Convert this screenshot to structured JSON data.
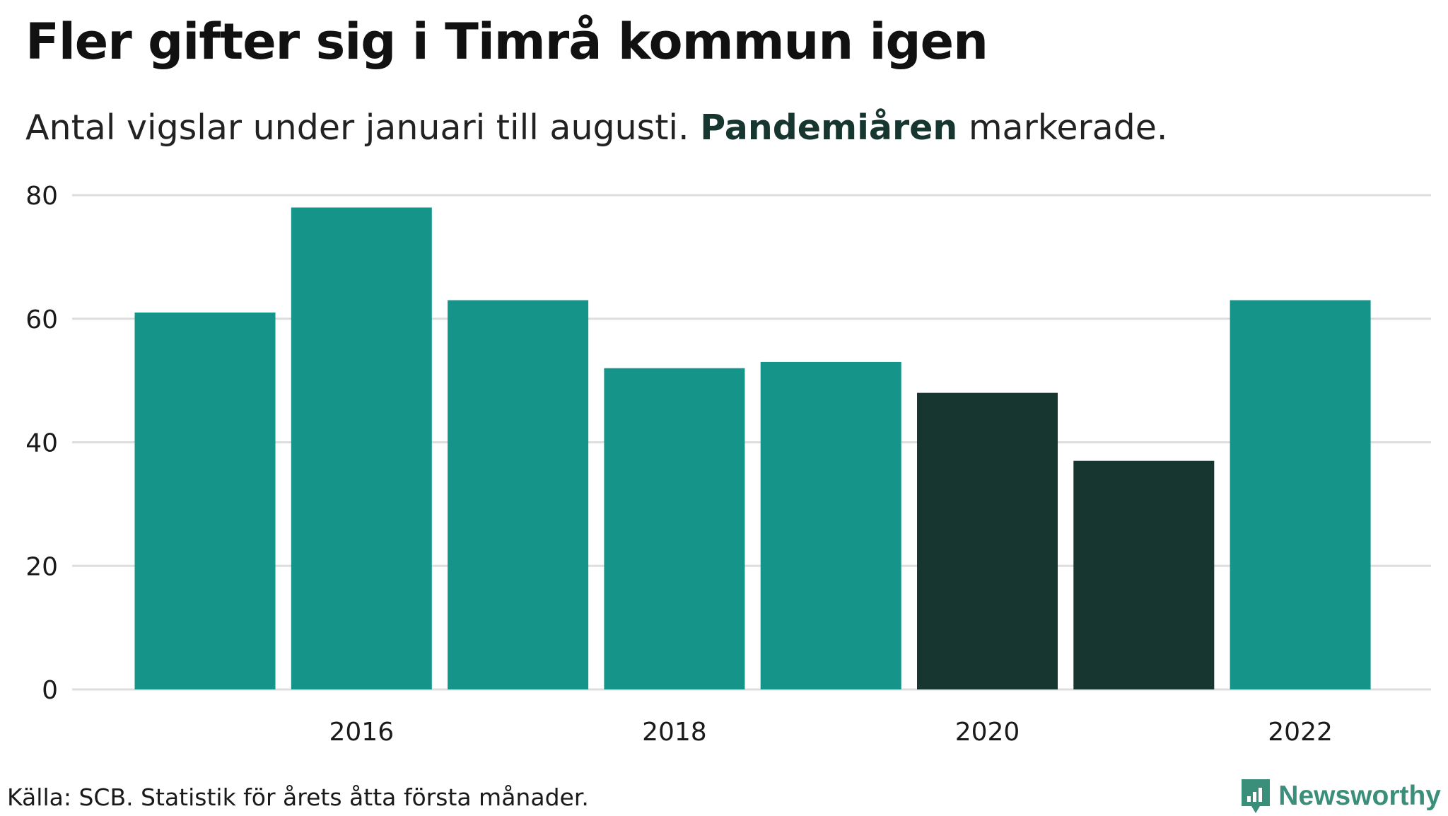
{
  "title": "Fler gifter sig i Timrå kommun igen",
  "subtitle": {
    "before": "Antal vigslar under januari till augusti.",
    "highlight": "Pandemiåren",
    "after": "markerade."
  },
  "source": "Källa: SCB. Statistik för årets åtta första månader.",
  "brand": "Newsworthy",
  "colors": {
    "normal": "#15958a",
    "pandemic": "#183630",
    "grid": "#dddddd",
    "brand": "#3a8f7a"
  },
  "chart_data": {
    "type": "bar",
    "categories": [
      "2015",
      "2016",
      "2017",
      "2018",
      "2019",
      "2020",
      "2021",
      "2022"
    ],
    "values": [
      61,
      78,
      63,
      52,
      53,
      48,
      37,
      63
    ],
    "highlighted": [
      "2020",
      "2021"
    ],
    "xtick_labels": [
      "2016",
      "2018",
      "2020",
      "2022"
    ],
    "yticks": [
      0,
      20,
      40,
      60,
      80
    ],
    "ylim": [
      0,
      80
    ],
    "grid": true,
    "legend": false
  }
}
